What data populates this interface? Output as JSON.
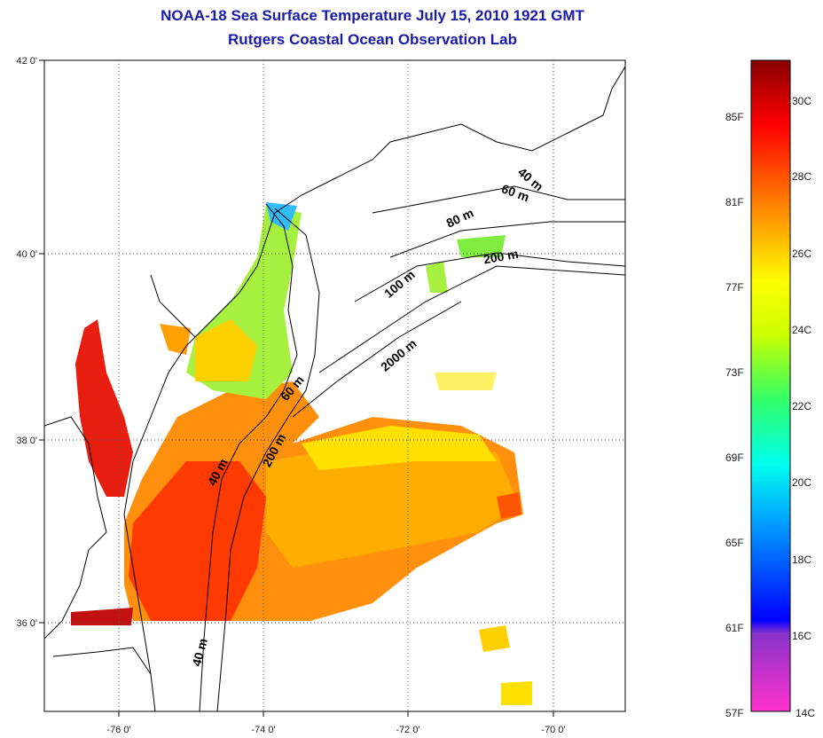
{
  "title_line1": "NOAA-18 Sea Surface Temperature July 15, 2010 1921 GMT",
  "title_line2": "Rutgers Coastal Ocean Observation Lab",
  "lat_ticks": [
    "42 0'",
    "40 0'",
    "38 0'",
    "36 0'"
  ],
  "lon_ticks": [
    "-76 0'",
    "-74 0'",
    "-72 0'",
    "-70 0'"
  ],
  "contour_labels": [
    "40 m",
    "60 m",
    "80 m",
    "100 m",
    "200 m",
    "2000 m",
    "60 m",
    "40 m",
    "200 m",
    "40 m"
  ],
  "colorbar": {
    "fahrenheit": [
      "85F",
      "81F",
      "77F",
      "73F",
      "69F",
      "65F",
      "61F",
      "57F"
    ],
    "celsius": [
      "30C",
      "28C",
      "26C",
      "24C",
      "22C",
      "20C",
      "18C",
      "16C",
      "14C"
    ]
  },
  "colors": {
    "title": "#1a1aa8",
    "land_outline": "#000000",
    "gridline": "#555555"
  }
}
